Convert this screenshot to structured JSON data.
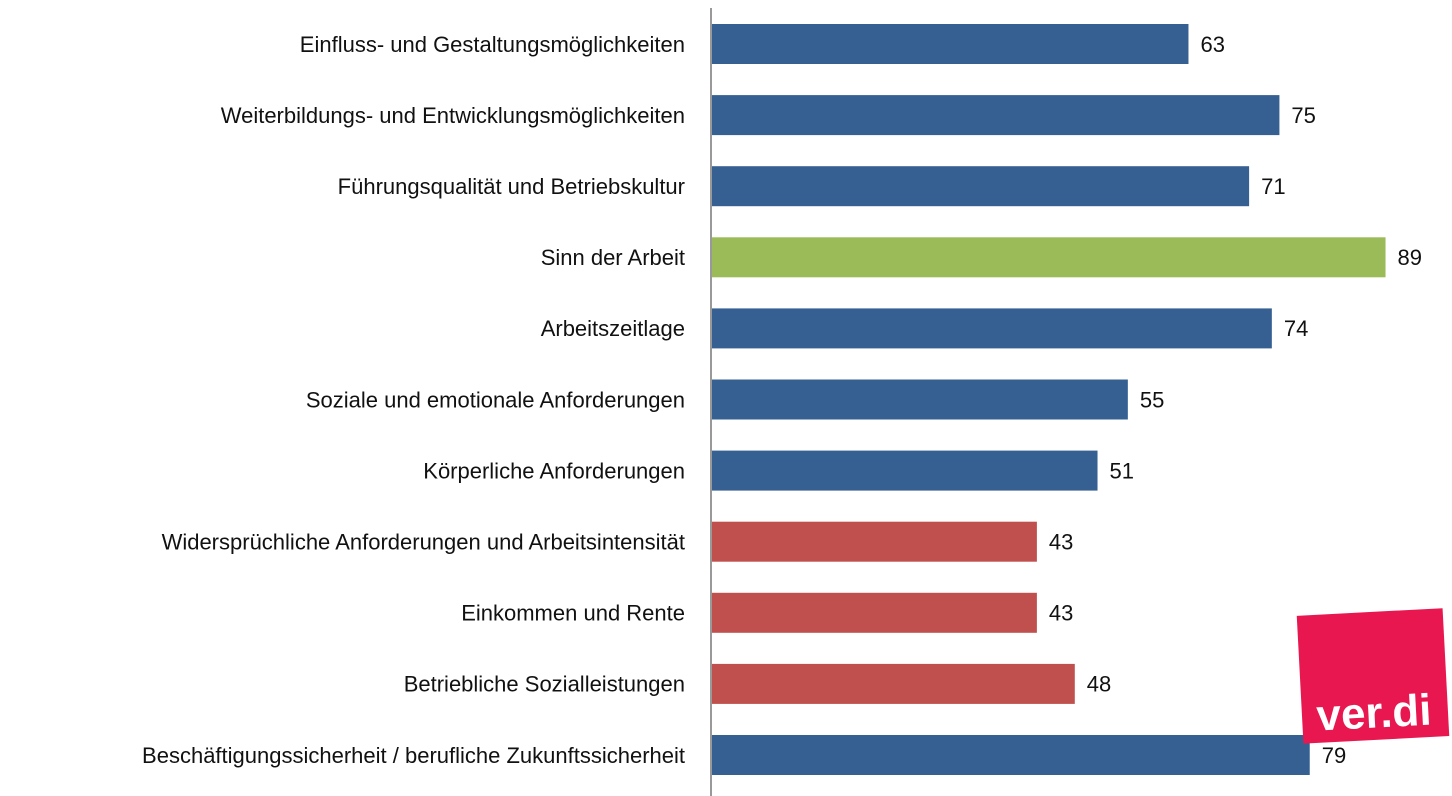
{
  "chart_data": {
    "type": "barh",
    "categories": [
      "Einfluss- und Gestaltungsmöglichkeiten",
      "Weiterbildungs- und Entwicklungsmöglichkeiten",
      "Führungsqualität und Betriebskultur",
      "Sinn der Arbeit",
      "Arbeitszeitlage",
      "Soziale und emotionale Anforderungen",
      "Körperliche Anforderungen",
      "Widersprüchliche Anforderungen und Arbeitsintensität",
      "Einkommen und Rente",
      "Betriebliche Sozialleistungen",
      "Beschäftigungssicherheit / berufliche Zukunftssicherheit"
    ],
    "values": [
      63,
      75,
      71,
      89,
      74,
      55,
      51,
      43,
      43,
      48,
      79
    ],
    "colors": [
      "#366092",
      "#366092",
      "#366092",
      "#9bbb59",
      "#366092",
      "#366092",
      "#366092",
      "#c0504d",
      "#c0504d",
      "#c0504d",
      "#366092"
    ],
    "xlim": [
      0,
      95
    ]
  },
  "logo": "ver.di"
}
